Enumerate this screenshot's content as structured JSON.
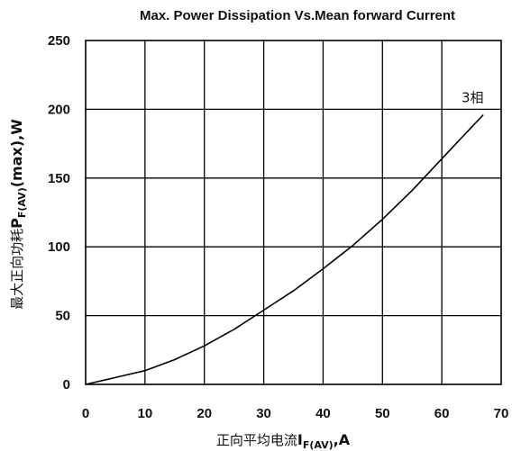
{
  "chart_data": {
    "type": "line",
    "title": "Max. Power Dissipation Vs.Mean forward Current",
    "xlabel": {
      "prefix": "正向平均电流",
      "symbol": "I",
      "subscript": "F(AV)",
      "suffix": ",A"
    },
    "ylabel": {
      "prefix": "最大正向功耗",
      "symbol": "P",
      "subscript": "F(AV)",
      "suffix": "(max),W"
    },
    "xlim": [
      0,
      70
    ],
    "ylim": [
      0,
      250
    ],
    "xticks": [
      0,
      10,
      20,
      30,
      40,
      50,
      60,
      70
    ],
    "yticks": [
      0,
      50,
      100,
      150,
      200,
      250
    ],
    "grid": true,
    "series": [
      {
        "name": "3相",
        "x": [
          0,
          5,
          10,
          15,
          20,
          25,
          30,
          35,
          40,
          45,
          50,
          55,
          60,
          65,
          67
        ],
        "y": [
          0,
          5,
          10,
          18,
          28,
          40,
          54,
          68,
          84,
          101,
          120,
          141,
          164,
          187,
          196
        ]
      }
    ]
  }
}
